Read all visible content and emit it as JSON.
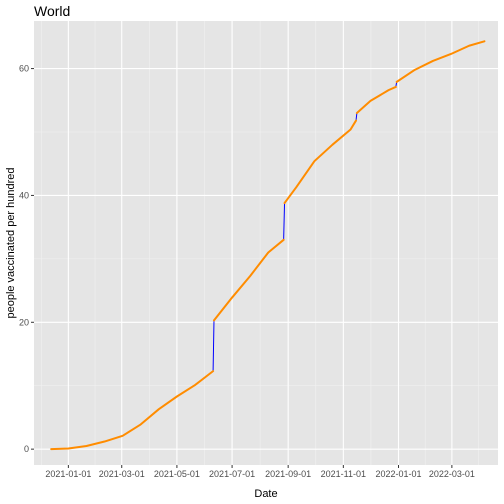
{
  "chart_data": {
    "type": "line",
    "title": "World",
    "xlabel": "Date",
    "ylabel": "people vaccinated per hundred",
    "x_ticks": [
      "2021-01-01",
      "2021-03-01",
      "2021-05-01",
      "2021-07-01",
      "2021-09-01",
      "2021-11-01",
      "2022-01-01",
      "2022-03-01"
    ],
    "y_ticks": [
      0,
      20,
      40,
      60
    ],
    "xlim": [
      "2020-11-24",
      "2022-04-21"
    ],
    "ylim": [
      -2.5,
      67.5
    ],
    "grid": true,
    "background": "#e5e5e5",
    "gridline_color": "#ffffff",
    "series": [
      {
        "role": "blue-line",
        "color": "#0000ff",
        "x": [
          "2020-12-13",
          "2021-01-01",
          "2021-01-21",
          "2021-02-10",
          "2021-03-02",
          "2021-03-22",
          "2021-04-11",
          "2021-05-01",
          "2021-05-21",
          "2021-06-10",
          "2021-06-11",
          "2021-07-01",
          "2021-07-21",
          "2021-08-10",
          "2021-08-27",
          "2021-08-28",
          "2021-09-10",
          "2021-09-30",
          "2021-10-20",
          "2021-11-09",
          "2021-11-15",
          "2021-11-16",
          "2021-12-01",
          "2021-12-21",
          "2021-12-29",
          "2021-12-30",
          "2022-01-19",
          "2022-02-08",
          "2022-02-28",
          "2022-03-20",
          "2022-04-06"
        ],
        "y": [
          0.0,
          0.1,
          0.5,
          1.2,
          2.1,
          3.9,
          6.3,
          8.3,
          10.1,
          12.3,
          20.3,
          23.9,
          27.3,
          31.0,
          33.0,
          38.8,
          41.3,
          45.4,
          48.0,
          50.4,
          51.8,
          53.0,
          54.9,
          56.6,
          57.1,
          57.9,
          59.8,
          61.2,
          62.3,
          63.6,
          64.3
        ]
      },
      {
        "role": "orange-line",
        "color": "#ff8c00",
        "x": [
          "2020-12-13",
          "2021-01-01",
          "2021-01-21",
          "2021-02-10",
          "2021-03-02",
          "2021-03-22",
          "2021-04-11",
          "2021-05-01",
          "2021-05-21",
          "2021-06-10",
          "2021-06-11",
          "2021-07-01",
          "2021-07-21",
          "2021-08-10",
          "2021-08-27",
          "2021-08-28",
          "2021-09-10",
          "2021-09-30",
          "2021-10-20",
          "2021-11-09",
          "2021-11-15",
          "2021-11-16",
          "2021-12-01",
          "2021-12-21",
          "2021-12-29",
          "2021-12-30",
          "2022-01-19",
          "2022-02-08",
          "2022-02-28",
          "2022-03-20",
          "2022-04-06"
        ],
        "y": [
          0.0,
          0.1,
          0.5,
          1.2,
          2.1,
          3.9,
          6.3,
          8.3,
          10.1,
          12.3,
          20.3,
          23.9,
          27.3,
          31.0,
          33.0,
          38.8,
          41.3,
          45.4,
          48.0,
          50.4,
          51.8,
          53.0,
          54.9,
          56.6,
          57.1,
          57.9,
          59.8,
          61.2,
          62.3,
          63.6,
          64.3
        ],
        "gaps_after": [
          "2021-06-10",
          "2021-08-27",
          "2021-11-15",
          "2021-12-29"
        ]
      }
    ]
  }
}
